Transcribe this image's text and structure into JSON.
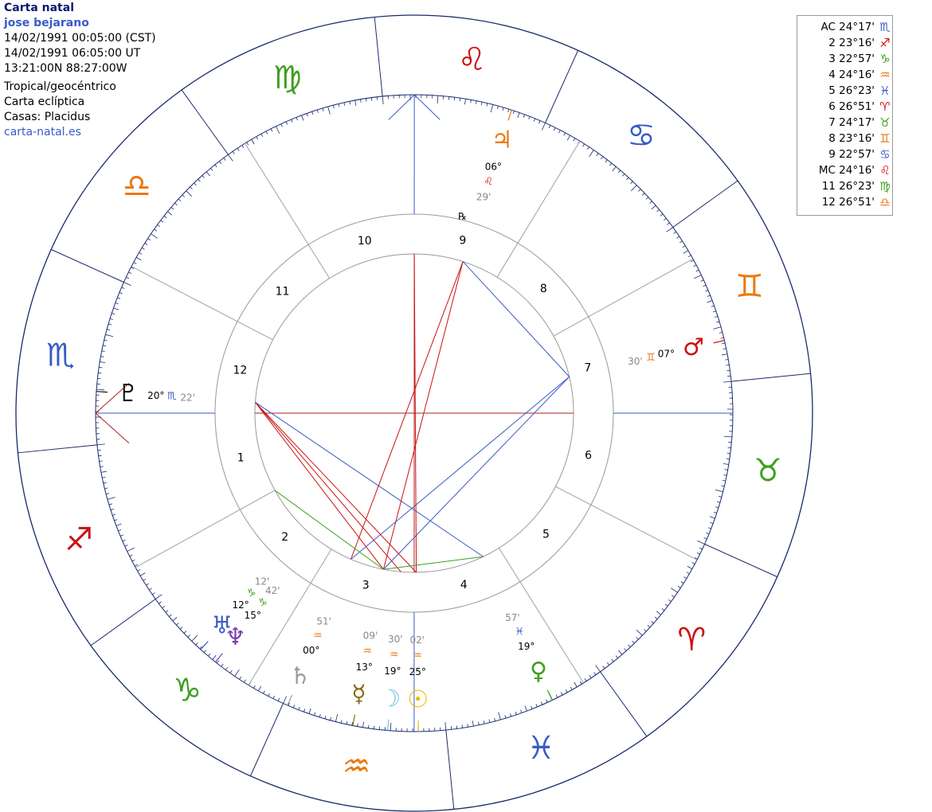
{
  "info": {
    "title": "Carta natal",
    "name": "jose bejarano",
    "local_time": "14/02/1991 00:05:00 (CST)",
    "ut_time": "14/02/1991 06:05:00 UT",
    "coords": "13:21:00N 88:27:00W",
    "system": "Tropical/geocéntrico",
    "chart_kind": "Carta eclíptica",
    "houses": "Casas: Placidus",
    "site": "carta-natal.es"
  },
  "house_table": [
    {
      "label": "AC 24°17'",
      "sign": "♏",
      "color": "#3a5bc7"
    },
    {
      "label": "2 23°16'",
      "sign": "♐",
      "color": "#cc1111"
    },
    {
      "label": "3 22°57'",
      "sign": "♑",
      "color": "#3f9f1f"
    },
    {
      "label": "4 24°16'",
      "sign": "♒",
      "color": "#ee7711"
    },
    {
      "label": "5 26°23'",
      "sign": "♓",
      "color": "#3a5bc7"
    },
    {
      "label": "6 26°51'",
      "sign": "♈",
      "color": "#cc1111"
    },
    {
      "label": "7 24°17'",
      "sign": "♉",
      "color": "#3f9f1f"
    },
    {
      "label": "8 23°16'",
      "sign": "♊",
      "color": "#ee7711"
    },
    {
      "label": "9 22°57'",
      "sign": "♋",
      "color": "#3a5bc7"
    },
    {
      "label": "MC 24°16'",
      "sign": "♌",
      "color": "#cc1111"
    },
    {
      "label": "11 26°23'",
      "sign": "♍",
      "color": "#3f9f1f"
    },
    {
      "label": "12 26°51'",
      "sign": "♎",
      "color": "#ee7711"
    }
  ],
  "wheel": {
    "ascendant": 234.283,
    "signs": [
      {
        "glyph": "♈",
        "name": "aries",
        "color": "#cc1111"
      },
      {
        "glyph": "♉",
        "name": "taurus",
        "color": "#3f9f1f"
      },
      {
        "glyph": "♊",
        "name": "gemini",
        "color": "#ee7711"
      },
      {
        "glyph": "♋",
        "name": "cancer",
        "color": "#3a5bc7"
      },
      {
        "glyph": "♌",
        "name": "leo",
        "color": "#cc1111"
      },
      {
        "glyph": "♍",
        "name": "virgo",
        "color": "#3f9f1f"
      },
      {
        "glyph": "♎",
        "name": "libra",
        "color": "#ee7711"
      },
      {
        "glyph": "♏",
        "name": "scorpio",
        "color": "#3a5bc7"
      },
      {
        "glyph": "♐",
        "name": "sagittarius",
        "color": "#cc1111"
      },
      {
        "glyph": "♑",
        "name": "capricorn",
        "color": "#3f9f1f"
      },
      {
        "glyph": "♒",
        "name": "aquarius",
        "color": "#ee7711"
      },
      {
        "glyph": "♓",
        "name": "pisces",
        "color": "#3a5bc7"
      }
    ],
    "cusps": [
      {
        "num": "1",
        "lon": 234.283
      },
      {
        "num": "2",
        "lon": 263.267
      },
      {
        "num": "3",
        "lon": 292.95
      },
      {
        "num": "4",
        "lon": 324.267
      },
      {
        "num": "5",
        "lon": 356.383
      },
      {
        "num": "6",
        "lon": 26.85
      },
      {
        "num": "7",
        "lon": 54.283
      },
      {
        "num": "8",
        "lon": 83.267
      },
      {
        "num": "9",
        "lon": 112.95
      },
      {
        "num": "10",
        "lon": 144.267
      },
      {
        "num": "11",
        "lon": 176.383
      },
      {
        "num": "12",
        "lon": 206.85
      }
    ],
    "planets": [
      {
        "name": "sun",
        "glyph": "☉",
        "color": "#e8c000",
        "lon": 325.033,
        "deg": "25°",
        "sign": "♒",
        "sign_color": "#ee7711",
        "min": "02'"
      },
      {
        "name": "moon",
        "glyph": "☽",
        "color": "#7cbfe8",
        "lon": 319.5,
        "deg": "19°",
        "sign": "♒",
        "sign_color": "#ee7711",
        "min": "30'"
      },
      {
        "name": "mercury",
        "glyph": "☿",
        "color": "#8a6a10",
        "lon": 313.15,
        "deg": "13°",
        "sign": "♒",
        "sign_color": "#ee7711",
        "min": "09'"
      },
      {
        "name": "venus",
        "glyph": "♀",
        "color": "#3f9f1f",
        "lon": 349.95,
        "deg": "19°",
        "sign": "♓",
        "sign_color": "#3a5bc7",
        "min": "57'"
      },
      {
        "name": "mars",
        "glyph": "♂",
        "color": "#cc1111",
        "lon": 67.5,
        "deg": "07°",
        "sign": "♊",
        "sign_color": "#ee7711",
        "min": "30'"
      },
      {
        "name": "jupiter",
        "glyph": "♃",
        "color": "#ee7711",
        "lon": 126.483,
        "deg": "06°",
        "sign": "♌",
        "sign_color": "#cc1111",
        "min": "29'"
      },
      {
        "name": "saturn",
        "glyph": "♄",
        "color": "#9a9a9a",
        "lon": 300.85,
        "deg": "00°",
        "sign": "♒",
        "sign_color": "#ee7711",
        "min": "51'"
      },
      {
        "name": "uranus",
        "glyph": "♅",
        "color": "#3a5bc7",
        "lon": 282.2,
        "deg": "12°",
        "sign": "♑",
        "sign_color": "#3f9f1f",
        "min": "12'"
      },
      {
        "name": "neptune",
        "glyph": "♆",
        "color": "#7a3fb0",
        "lon": 285.7,
        "deg": "15°",
        "sign": "♑",
        "sign_color": "#3f9f1f",
        "min": "42'"
      },
      {
        "name": "pluto",
        "glyph": "♇",
        "color": "#111111",
        "lon": 230.367,
        "deg": "20°",
        "sign": "♏",
        "sign_color": "#3a5bc7",
        "min": "22'"
      }
    ],
    "rx_label": "℞",
    "aspects": [
      {
        "a": 230.367,
        "b": 325.033,
        "color": "#cc1111"
      },
      {
        "a": 230.367,
        "b": 319.5,
        "color": "#cc1111"
      },
      {
        "a": 230.367,
        "b": 313.15,
        "color": "#cc1111"
      },
      {
        "a": 230.367,
        "b": 349.95,
        "color": "#3a5bc7"
      },
      {
        "a": 126.483,
        "b": 313.15,
        "color": "#cc1111"
      },
      {
        "a": 126.483,
        "b": 300.85,
        "color": "#cc1111"
      },
      {
        "a": 126.483,
        "b": 67.5,
        "color": "#3a5bc7"
      },
      {
        "a": 67.5,
        "b": 300.85,
        "color": "#3a5bc7"
      },
      {
        "a": 67.5,
        "b": 313.15,
        "color": "#3a5bc7"
      },
      {
        "a": 144.267,
        "b": 325.033,
        "color": "#cc1111"
      },
      {
        "a": 263.267,
        "b": 313.15,
        "color": "#3f9f1f"
      },
      {
        "a": 349.95,
        "b": 313.15,
        "color": "#3f9f1f"
      }
    ]
  }
}
